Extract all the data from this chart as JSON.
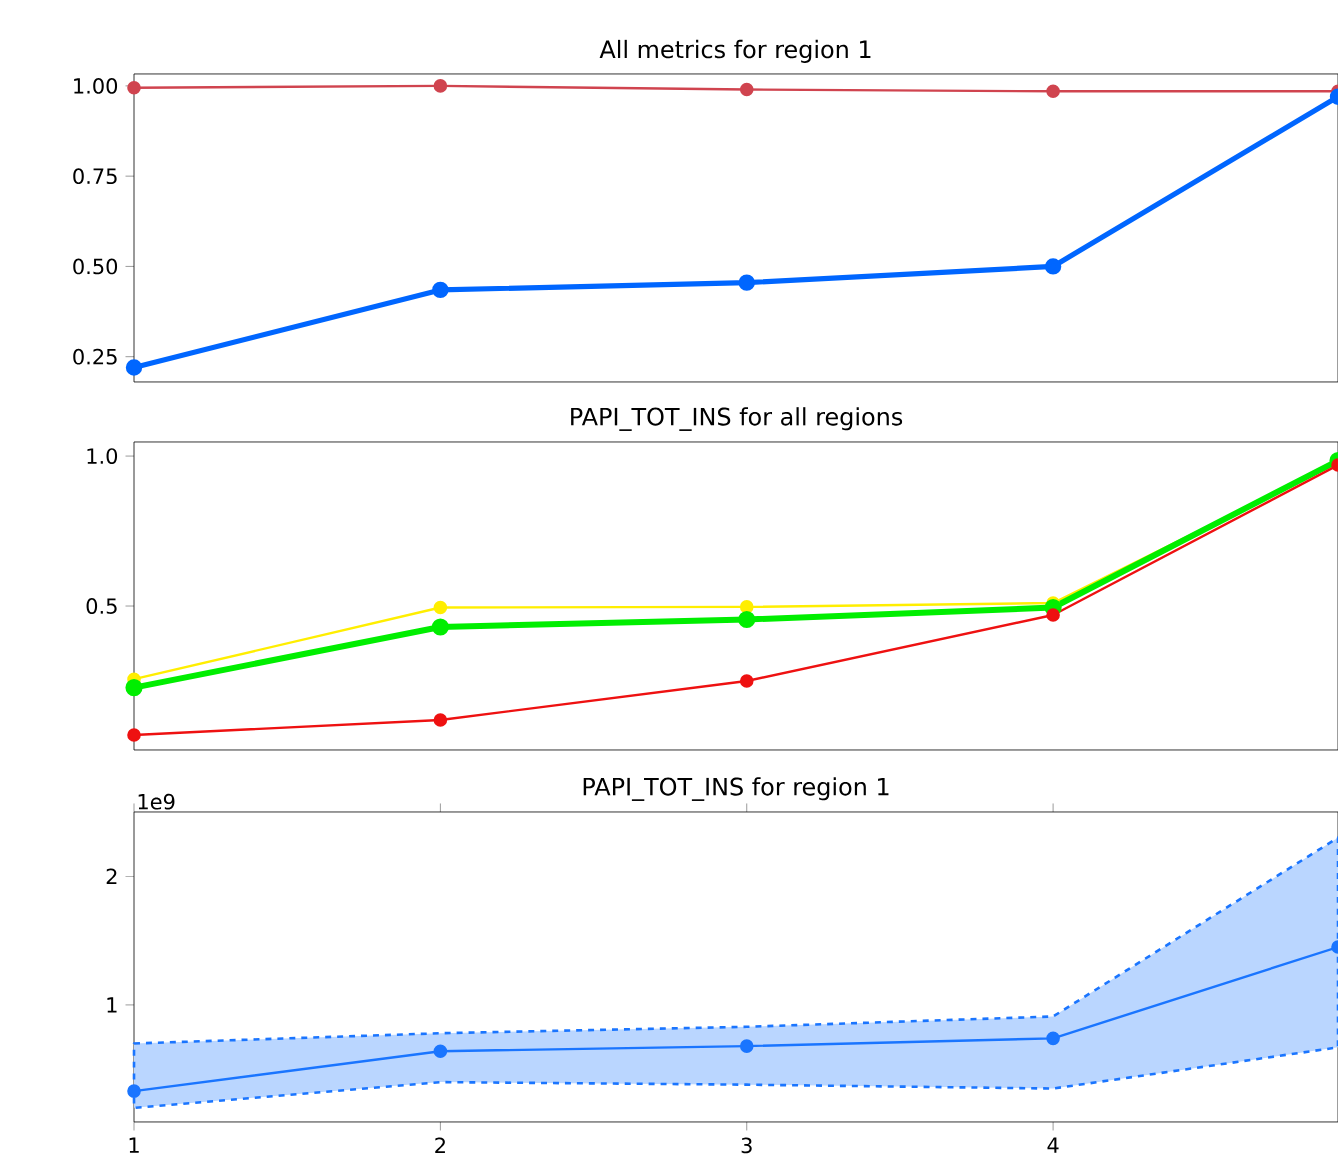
{
  "chart_data": [
    {
      "type": "line",
      "title": "All metrics for region 1",
      "x": [
        1,
        2,
        3,
        4,
        4.93
      ],
      "series": [
        {
          "color": "#d0444f",
          "values": [
            0.995,
            1.0,
            0.99,
            0.985,
            0.985
          ]
        },
        {
          "color": "#0066ff",
          "values": [
            0.22,
            0.435,
            0.455,
            0.5,
            0.97
          ]
        }
      ],
      "xlim": [
        1,
        4.93
      ],
      "ylim": [
        0.18,
        1.033
      ],
      "yticks": [
        {
          "value": 0.25,
          "label": "0.25"
        },
        {
          "value": 0.5,
          "label": "0.50"
        },
        {
          "value": 0.75,
          "label": "0.75"
        },
        {
          "value": 1.0,
          "label": "1.00"
        }
      ],
      "tick_labels": "y",
      "marker": "circle"
    },
    {
      "type": "line",
      "title": "PAPI_TOT_INS for all regions",
      "x": [
        1,
        2,
        3,
        4,
        4.93
      ],
      "series": [
        {
          "color": "#ffee00",
          "values": [
            0.256,
            0.495,
            0.497,
            0.51,
            0.98
          ]
        },
        {
          "color": "#00ee00",
          "values": [
            0.228,
            0.43,
            0.455,
            0.495,
            0.985
          ]
        },
        {
          "color": "#ee1111",
          "values": [
            0.07,
            0.12,
            0.25,
            0.47,
            0.97
          ]
        }
      ],
      "xlim": [
        1,
        4.93
      ],
      "ylim": [
        0.02,
        1.047
      ],
      "yticks": [
        {
          "value": 0.5,
          "label": "0.5"
        },
        {
          "value": 1.0,
          "label": "1.0"
        }
      ],
      "tick_labels": "y",
      "marker": "circle"
    },
    {
      "type": "line",
      "title": "PAPI_TOT_INS for region 1",
      "x": [
        1,
        2,
        3,
        4,
        4.93
      ],
      "series": [
        {
          "color": "#1a75ff",
          "values": [
            0.33,
            0.64,
            0.68,
            0.74,
            1.45
          ],
          "lower": [
            0.2,
            0.4,
            0.38,
            0.35,
            0.67
          ],
          "upper": [
            0.7,
            0.78,
            0.83,
            0.91,
            2.3
          ]
        }
      ],
      "xlim": [
        1,
        4.93
      ],
      "ylim": [
        0.09,
        2.5
      ],
      "xticks": [
        1,
        2,
        3,
        4
      ],
      "yticks": [
        1,
        2
      ],
      "annotations": [
        "1e9"
      ],
      "marker": "circle"
    }
  ]
}
